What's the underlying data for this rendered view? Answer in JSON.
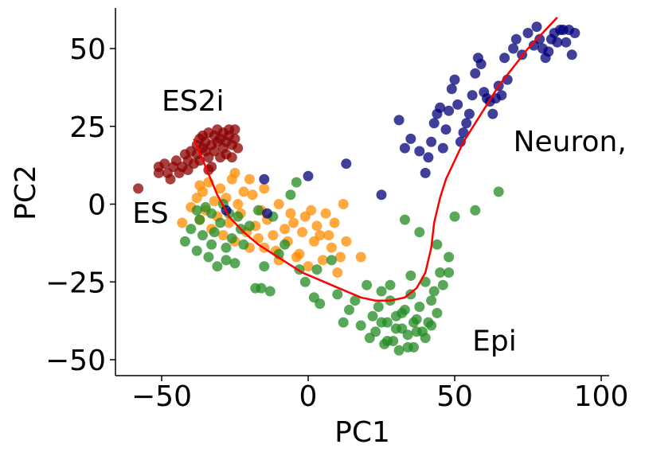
{
  "chart_data": {
    "type": "scatter",
    "title": "",
    "xlabel": "PC1",
    "ylabel": "PC2",
    "xlim": [
      -65,
      102
    ],
    "ylim": [
      -55,
      63
    ],
    "xticks": [
      -50,
      0,
      50,
      100
    ],
    "yticks": [
      -50,
      -25,
      0,
      25,
      50
    ],
    "xtick_labels": [
      "−50",
      "0",
      "50",
      "100"
    ],
    "ytick_labels": [
      "−50",
      "−25",
      "0",
      "25",
      "50"
    ],
    "grid": false,
    "legend": "none",
    "annotations": [
      {
        "text": "ES2i",
        "x": -50,
        "y": 30
      },
      {
        "text": "ES",
        "x": -60,
        "y": -6
      },
      {
        "text": "Neuron,",
        "x": 70,
        "y": 17
      },
      {
        "text": "Epi",
        "x": 56,
        "y": -47
      }
    ],
    "series": [
      {
        "color": "#8B0000",
        "points": [
          [
            -58,
            5
          ],
          [
            -51,
            12
          ],
          [
            -51,
            10
          ],
          [
            -49,
            13
          ],
          [
            -48,
            10
          ],
          [
            -47,
            8
          ],
          [
            -46,
            12
          ],
          [
            -45,
            14
          ],
          [
            -44,
            10
          ],
          [
            -43,
            12
          ],
          [
            -42,
            16
          ],
          [
            -41,
            11
          ],
          [
            -41,
            14
          ],
          [
            -40,
            17
          ],
          [
            -39,
            13
          ],
          [
            -38,
            19
          ],
          [
            -38,
            16
          ],
          [
            -37,
            21
          ],
          [
            -37,
            14
          ],
          [
            -36,
            18
          ],
          [
            -36,
            22
          ],
          [
            -35,
            17
          ],
          [
            -35,
            20
          ],
          [
            -34,
            15
          ],
          [
            -34,
            23
          ],
          [
            -33,
            19
          ],
          [
            -33,
            12
          ],
          [
            -32,
            22
          ],
          [
            -32,
            17
          ],
          [
            -31,
            24
          ],
          [
            -31,
            20
          ],
          [
            -30,
            15
          ],
          [
            -30,
            21
          ],
          [
            -29,
            18
          ],
          [
            -29,
            23
          ],
          [
            -28,
            20
          ],
          [
            -28,
            16
          ],
          [
            -27,
            22
          ],
          [
            -27,
            24
          ],
          [
            -26,
            19
          ],
          [
            -26,
            15
          ],
          [
            -25,
            21
          ],
          [
            -25,
            24
          ],
          [
            -34,
            11
          ],
          [
            -24,
            18
          ]
        ]
      },
      {
        "color": "#FF8C00",
        "points": [
          [
            -43,
            -6
          ],
          [
            -40,
            -1
          ],
          [
            -38,
            2
          ],
          [
            -37,
            -5
          ],
          [
            -36,
            4
          ],
          [
            -35,
            -2
          ],
          [
            -34,
            7
          ],
          [
            -33,
            -8
          ],
          [
            -32,
            1
          ],
          [
            -31,
            -4
          ],
          [
            -30,
            5
          ],
          [
            -29,
            -10
          ],
          [
            -28,
            2
          ],
          [
            -27,
            -6
          ],
          [
            -26,
            8
          ],
          [
            -25,
            -12
          ],
          [
            -24,
            0
          ],
          [
            -23,
            -3
          ],
          [
            -22,
            4
          ],
          [
            -21,
            -9
          ],
          [
            -20,
            -14
          ],
          [
            -19,
            3
          ],
          [
            -18,
            -7
          ],
          [
            -17,
            -11
          ],
          [
            -16,
            -2
          ],
          [
            -15,
            5
          ],
          [
            -14,
            -5
          ],
          [
            -12,
            -10
          ],
          [
            -11,
            -15
          ],
          [
            -10,
            0
          ],
          [
            -8,
            -8
          ],
          [
            -7,
            -12
          ],
          [
            -6,
            -3
          ],
          [
            -5,
            -6
          ],
          [
            -3,
            -16
          ],
          [
            -2,
            -9
          ],
          [
            -1,
            -4
          ],
          [
            0,
            -20
          ],
          [
            2,
            -12
          ],
          [
            3,
            -7
          ],
          [
            5,
            -18
          ],
          [
            6,
            -3
          ],
          [
            7,
            -10
          ],
          [
            8,
            -14
          ],
          [
            9,
            -6
          ],
          [
            10,
            -22
          ],
          [
            11,
            -17
          ],
          [
            12,
            0
          ],
          [
            13,
            -12
          ],
          [
            18,
            -17
          ],
          [
            -20,
            8
          ],
          [
            -25,
            10
          ],
          [
            -37,
            6
          ],
          [
            -15,
            -14
          ],
          [
            -4,
            -17
          ],
          [
            1,
            -2
          ],
          [
            4,
            -10
          ],
          [
            -10,
            -18
          ]
        ]
      },
      {
        "color": "#228B22",
        "points": [
          [
            -42,
            -12
          ],
          [
            -40,
            -8
          ],
          [
            -38,
            -15
          ],
          [
            -37,
            -5
          ],
          [
            -36,
            -10
          ],
          [
            -35,
            -1
          ],
          [
            -34,
            -17
          ],
          [
            -33,
            -3
          ],
          [
            -32,
            -9
          ],
          [
            -31,
            -20
          ],
          [
            -30,
            -6
          ],
          [
            -29,
            0
          ],
          [
            -28,
            -14
          ],
          [
            -27,
            -3
          ],
          [
            -26,
            -11
          ],
          [
            -25,
            -19
          ],
          [
            -24,
            -4
          ],
          [
            -23,
            -8
          ],
          [
            -22,
            -13
          ],
          [
            -20,
            -7
          ],
          [
            -18,
            -27
          ],
          [
            -17,
            -2
          ],
          [
            -15,
            -20
          ],
          [
            -13,
            -28
          ],
          [
            -12,
            -4
          ],
          [
            -10,
            -16
          ],
          [
            -8,
            -13
          ],
          [
            -6,
            3
          ],
          [
            -4,
            7
          ],
          [
            -3,
            -21
          ],
          [
            -1,
            -25
          ],
          [
            2,
            -30
          ],
          [
            3,
            -21
          ],
          [
            4,
            -32
          ],
          [
            8,
            -18
          ],
          [
            10,
            -29
          ],
          [
            12,
            -38
          ],
          [
            14,
            -34
          ],
          [
            16,
            -31
          ],
          [
            18,
            -39
          ],
          [
            20,
            -26
          ],
          [
            21,
            -43
          ],
          [
            22,
            -36
          ],
          [
            23,
            -41
          ],
          [
            24,
            -33
          ],
          [
            25,
            -28
          ],
          [
            26,
            -45
          ],
          [
            27,
            -38
          ],
          [
            28,
            -31
          ],
          [
            29,
            -44
          ],
          [
            30,
            -36
          ],
          [
            31,
            -47
          ],
          [
            32,
            -40
          ],
          [
            33,
            -34
          ],
          [
            34,
            -42
          ],
          [
            35,
            -29
          ],
          [
            36,
            -46
          ],
          [
            37,
            -37
          ],
          [
            38,
            -33
          ],
          [
            39,
            -41
          ],
          [
            40,
            -25
          ],
          [
            41,
            -38
          ],
          [
            42,
            -31
          ],
          [
            43,
            -28
          ],
          [
            44,
            -35
          ],
          [
            45,
            -22
          ],
          [
            46,
            -26
          ],
          [
            48,
            -17
          ],
          [
            48,
            -22
          ],
          [
            50,
            -4
          ],
          [
            57,
            -2
          ],
          [
            65,
            4
          ],
          [
            33,
            -5
          ],
          [
            38,
            -9
          ],
          [
            44,
            -13
          ],
          [
            35,
            -23
          ],
          [
            28,
            -26
          ],
          [
            32,
            -35
          ],
          [
            36,
            -38
          ],
          [
            40,
            -43
          ],
          [
            30,
            -40
          ],
          [
            25,
            -38
          ],
          [
            34,
            -46
          ],
          [
            37,
            -41
          ],
          [
            42,
            -39
          ],
          [
            27,
            -44
          ],
          [
            -28,
            -18
          ],
          [
            -16,
            -27
          ],
          [
            -38,
            -2
          ],
          [
            -33,
            -13
          ]
        ]
      },
      {
        "color": "#00007A",
        "points": [
          [
            -28,
            -2
          ],
          [
            -15,
            8
          ],
          [
            -14,
            -3
          ],
          [
            0,
            9
          ],
          [
            13,
            13
          ],
          [
            25,
            3
          ],
          [
            31,
            27
          ],
          [
            33,
            18
          ],
          [
            35,
            21
          ],
          [
            38,
            17
          ],
          [
            40,
            10
          ],
          [
            41,
            15
          ],
          [
            42,
            20
          ],
          [
            43,
            26
          ],
          [
            44,
            29
          ],
          [
            45,
            31
          ],
          [
            46,
            18
          ],
          [
            47,
            24
          ],
          [
            48,
            30
          ],
          [
            49,
            37
          ],
          [
            50,
            40
          ],
          [
            51,
            32
          ],
          [
            52,
            20
          ],
          [
            53,
            23
          ],
          [
            54,
            26
          ],
          [
            55,
            29
          ],
          [
            56,
            35
          ],
          [
            57,
            42
          ],
          [
            58,
            47
          ],
          [
            59,
            45
          ],
          [
            60,
            36
          ],
          [
            61,
            34
          ],
          [
            62,
            33
          ],
          [
            63,
            29
          ],
          [
            64,
            34
          ],
          [
            65,
            38
          ],
          [
            66,
            35
          ],
          [
            67,
            47
          ],
          [
            68,
            40
          ],
          [
            70,
            50
          ],
          [
            71,
            53
          ],
          [
            73,
            48
          ],
          [
            75,
            55
          ],
          [
            77,
            51
          ],
          [
            78,
            57
          ],
          [
            79,
            53
          ],
          [
            80,
            50
          ],
          [
            81,
            47
          ],
          [
            82,
            49
          ],
          [
            83,
            53
          ],
          [
            84,
            55
          ],
          [
            85,
            52
          ],
          [
            86,
            56
          ],
          [
            88,
            52
          ],
          [
            89,
            56
          ],
          [
            90,
            48
          ],
          [
            87,
            56
          ],
          [
            91,
            55
          ]
        ]
      }
    ],
    "trajectory": {
      "color": "#FF0000",
      "points": [
        [
          -39,
          21
        ],
        [
          -35,
          12
        ],
        [
          -31,
          3
        ],
        [
          -27,
          -4
        ],
        [
          -22,
          -9
        ],
        [
          -17,
          -13
        ],
        [
          -12,
          -16
        ],
        [
          -7,
          -19
        ],
        [
          -2,
          -22
        ],
        [
          3,
          -24
        ],
        [
          8,
          -26
        ],
        [
          13,
          -28
        ],
        [
          18,
          -30
        ],
        [
          23,
          -31
        ],
        [
          28,
          -31
        ],
        [
          33,
          -30
        ],
        [
          37,
          -27
        ],
        [
          40,
          -22
        ],
        [
          42,
          -14
        ],
        [
          43,
          -6
        ],
        [
          45,
          2
        ],
        [
          47,
          8
        ],
        [
          50,
          14
        ],
        [
          53,
          20
        ],
        [
          57,
          26
        ],
        [
          61,
          32
        ],
        [
          65,
          38
        ],
        [
          70,
          44
        ],
        [
          75,
          50
        ],
        [
          80,
          55
        ],
        [
          85,
          60
        ]
      ]
    }
  }
}
